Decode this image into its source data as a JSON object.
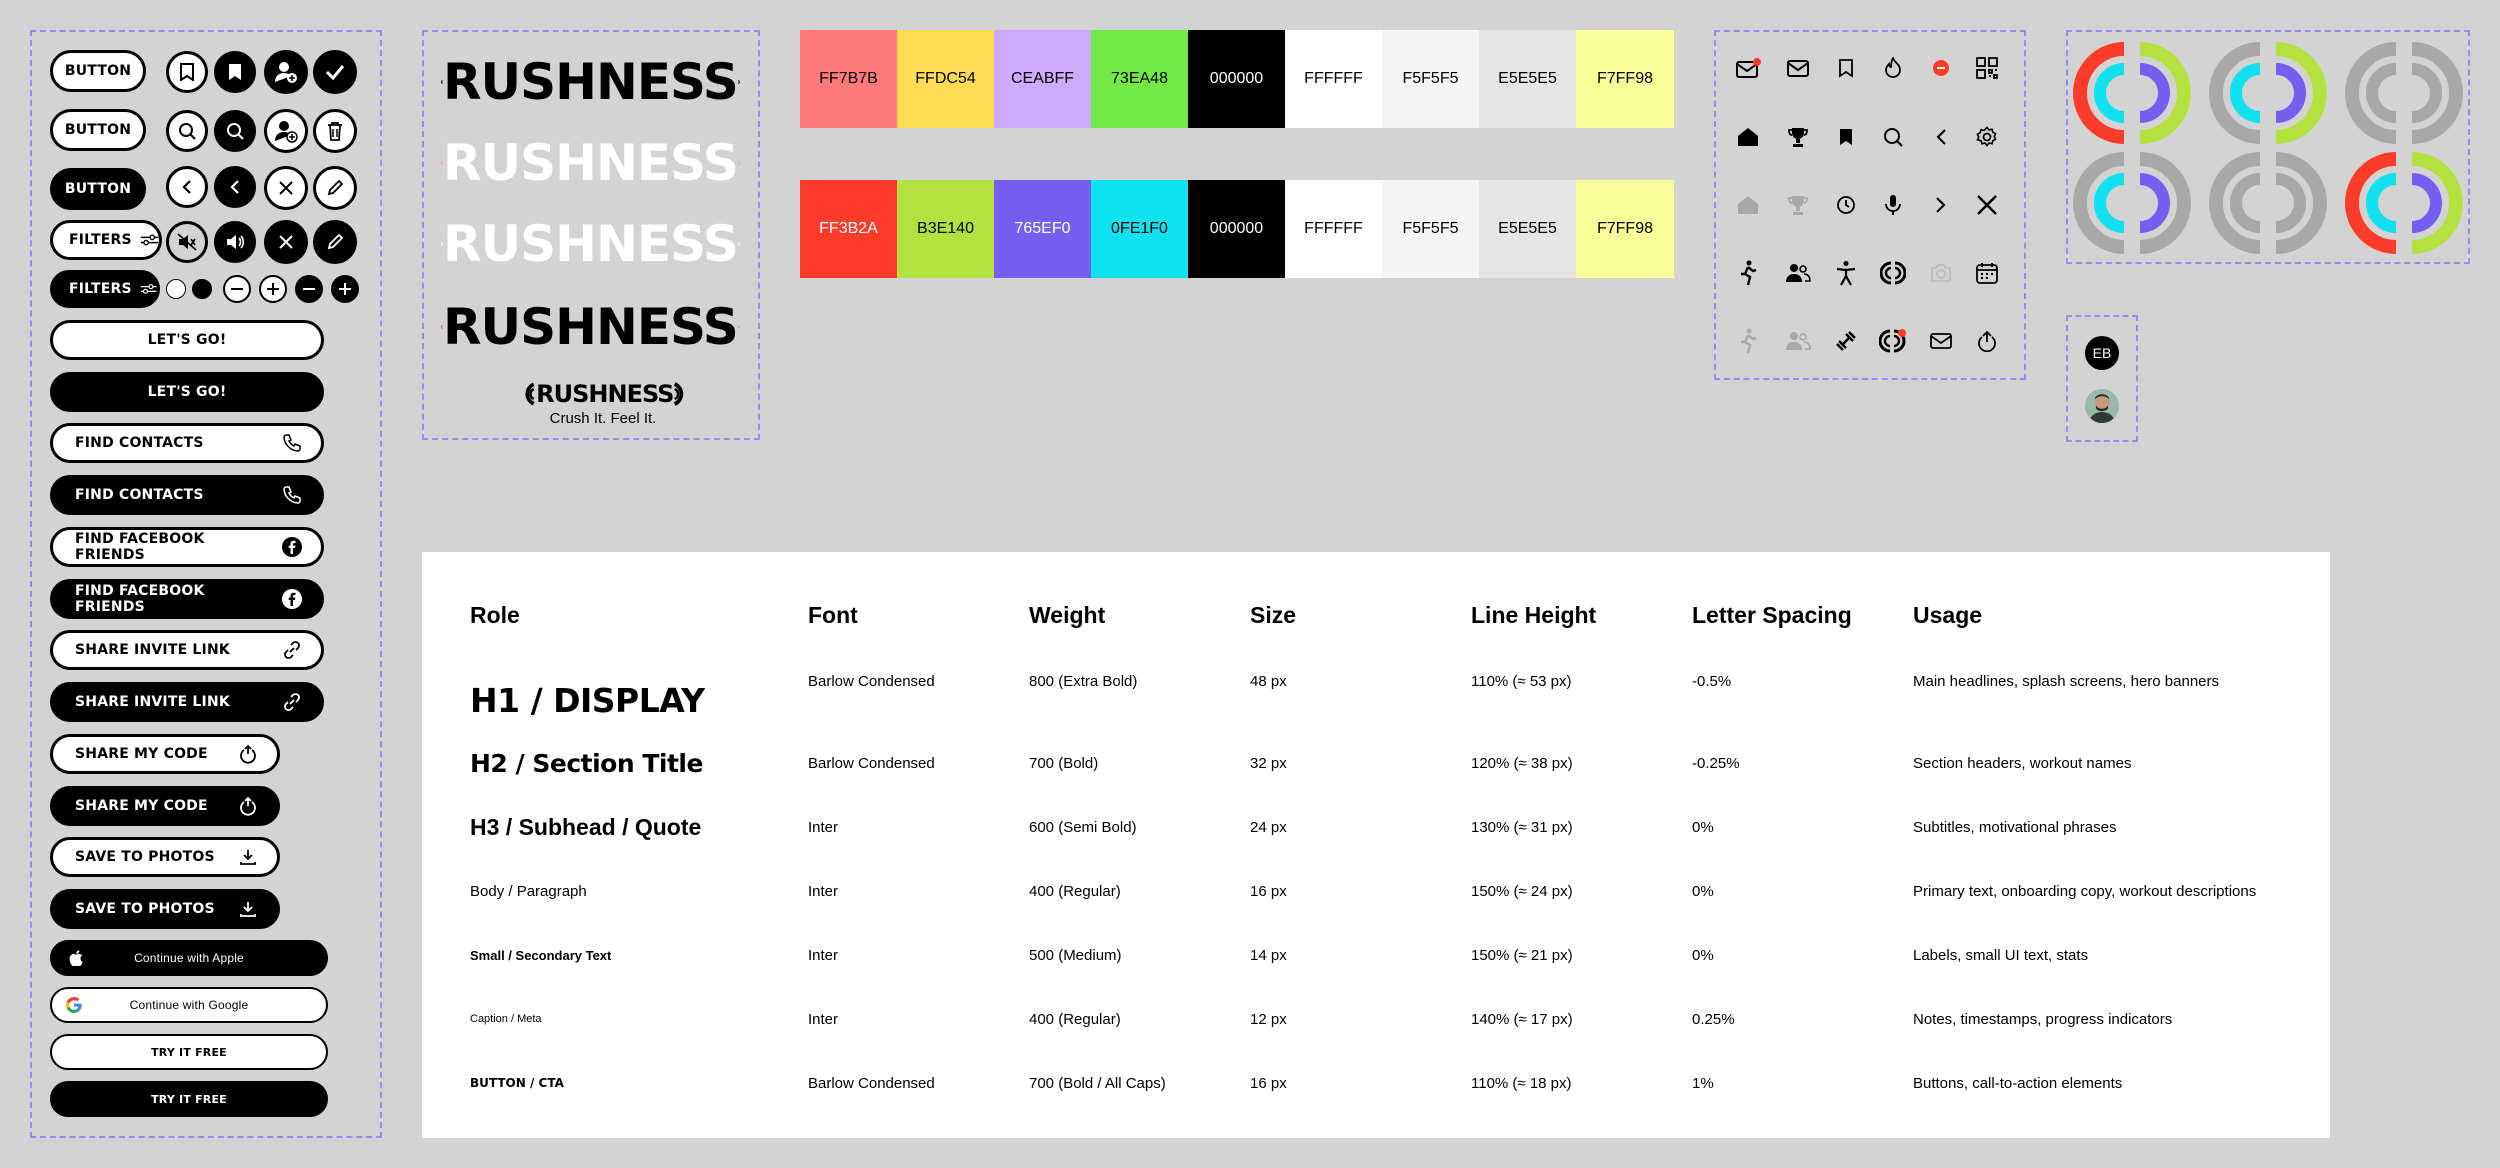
{
  "buttons": {
    "button": "BUTTON",
    "filters": "FILTERS",
    "lets_go": "LET'S GO!",
    "find_contacts": "FIND CONTACTS",
    "find_facebook": "FIND FACEBOOK FRIENDS",
    "share_invite": "SHARE INVITE LINK",
    "share_code": "SHARE MY CODE",
    "save_photos": "SAVE TO PHOTOS",
    "continue_apple": "Continue with Apple",
    "continue_google": "Continue with Google",
    "try_free": "TRY IT FREE"
  },
  "logo": {
    "word": "RUSHNESS",
    "tagline": "Crush It. Feel It."
  },
  "palette": {
    "row1": [
      "FF7B7B",
      "FFDC54",
      "CEABFF",
      "73EA48",
      "000000",
      "FFFFFF",
      "F5F5F5",
      "E5E5E5",
      "F7FF98"
    ],
    "row2": [
      "FF3B2A",
      "B3E140",
      "765EF0",
      "0FE1F0",
      "000000",
      "FFFFFF",
      "F5F5F5",
      "E5E5E5",
      "F7FF98"
    ]
  },
  "icons": [
    [
      "mail-notification-icon",
      "mail-icon",
      "bookmark-outline-icon",
      "flame-icon",
      "minus-circle-red-icon",
      "qr-code-icon"
    ],
    [
      "home-icon",
      "trophy-icon",
      "bookmark-filled-icon",
      "search-icon",
      "chevron-left-icon",
      "gear-icon"
    ],
    [
      "home-disabled-icon",
      "trophy-disabled-icon",
      "clock-icon",
      "microphone-icon",
      "chevron-right-icon",
      "close-icon"
    ],
    [
      "runner-icon",
      "users-icon",
      "person-icon",
      "crush-logo-icon",
      "camera-disabled-icon",
      "calendar-icon"
    ],
    [
      "runner-disabled-icon",
      "users-disabled-icon",
      "dumbbell-icon",
      "crush-logo-badge-icon",
      "envelope-icon",
      "share-icon"
    ]
  ],
  "avatar": {
    "initials": "EB"
  },
  "typography": {
    "headers": [
      "Role",
      "Font",
      "Weight",
      "Size",
      "Line Height",
      "Letter Spacing",
      "Usage"
    ],
    "rows": [
      [
        "H1 / DISPLAY",
        "Barlow Condensed",
        "800 (Extra Bold)",
        "48 px",
        "110% (≈ 53 px)",
        "-0.5%",
        "Main headlines, splash screens, hero banners"
      ],
      [
        "H2 / Section Title",
        "Barlow Condensed",
        "700 (Bold)",
        "32 px",
        "120% (≈ 38 px)",
        "-0.25%",
        "Section headers, workout names"
      ],
      [
        "H3 / Subhead / Quote",
        "Inter",
        "600 (Semi Bold)",
        "24 px",
        "130% (≈ 31 px)",
        "0%",
        "Subtitles, motivational phrases"
      ],
      [
        "Body / Paragraph",
        "Inter",
        "400 (Regular)",
        "16 px",
        "150% (≈ 24 px)",
        "0%",
        "Primary text, onboarding copy, workout descriptions"
      ],
      [
        "Small / Secondary Text",
        "Inter",
        "500 (Medium)",
        "14 px",
        "150% (≈ 21 px)",
        "0%",
        "Labels, small UI text, stats"
      ],
      [
        "Caption / Meta",
        "Inter",
        "400 (Regular)",
        "12 px",
        "140% (≈ 17 px)",
        "0.25%",
        "Notes, timestamps, progress indicators"
      ],
      [
        "BUTTON / CTA",
        "Barlow Condensed",
        "700 (Bold / All Caps)",
        "16 px",
        "110% (≈ 18 px)",
        "1%",
        "Buttons, call-to-action elements"
      ]
    ]
  }
}
